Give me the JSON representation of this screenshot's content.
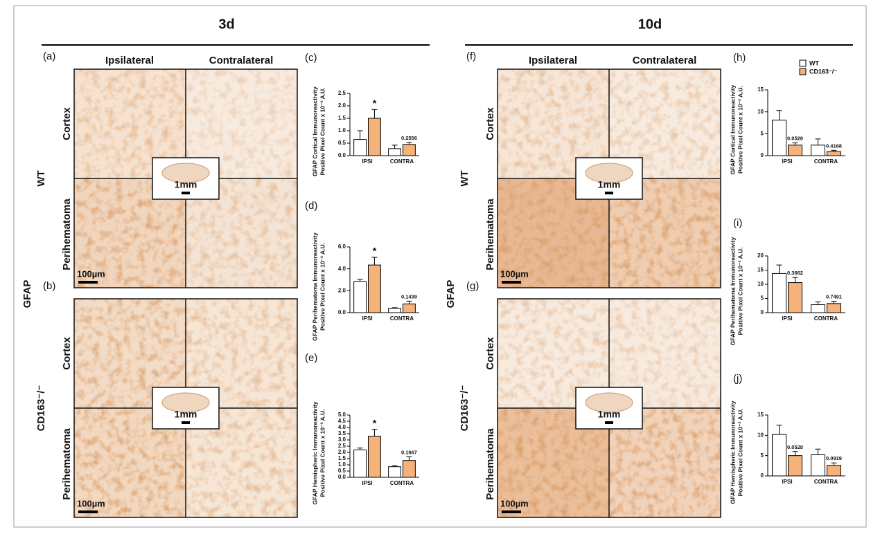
{
  "figure": {
    "legend": [
      {
        "name": "WT",
        "color": "#ffffff"
      },
      {
        "name": "CD163⁻/⁻",
        "color": "#f5b27a"
      }
    ],
    "timepoints": [
      {
        "title": "3d",
        "marker": "GFAP",
        "columns": [
          "Ipsilateral",
          "Contralateral"
        ],
        "panels": [
          {
            "letter": "(a)",
            "group": "WT",
            "rows": [
              "Cortex",
              "Perihematoma"
            ],
            "inset": "1mm",
            "scale": "100µm"
          },
          {
            "letter": "(b)",
            "group": "CD163⁻/⁻",
            "rows": [
              "Cortex",
              "Perihematoma"
            ],
            "inset": "1mm",
            "scale": "100µm"
          }
        ]
      },
      {
        "title": "10d",
        "marker": "GFAP",
        "columns": [
          "Ipsilateral",
          "Contralateral"
        ],
        "panels": [
          {
            "letter": "(f)",
            "group": "WT",
            "rows": [
              "Cortex",
              "Perihematoma"
            ],
            "inset": "1mm",
            "scale": "100µm"
          },
          {
            "letter": "(g)",
            "group": "CD163⁻/⁻",
            "rows": [
              "Cortex",
              "Perihematoma"
            ],
            "inset": "1mm",
            "scale": "100µm"
          }
        ]
      }
    ]
  },
  "chart_data": [
    {
      "type": "bar",
      "panel": "(c)",
      "ylabel": [
        "GFAP Cortical Immunoreactivity",
        "Positive Pixel  Count x 10⁻² A.U."
      ],
      "categories": [
        "IPSI",
        "CONTRA"
      ],
      "ylim": [
        0,
        2.5
      ],
      "yticks": [
        {
          "value": 0,
          "label": "0.0"
        },
        0.5,
        {
          "value": 1,
          "label": "1.0"
        },
        1.5,
        {
          "value": 2,
          "label": "2.0"
        },
        2.5
      ],
      "series": [
        {
          "color": "#ffffff",
          "values": [
            0.65,
            0.28
          ],
          "errors": [
            0.35,
            0.14
          ]
        },
        {
          "color": "#f5b27a",
          "values": [
            1.5,
            0.45
          ],
          "errors": [
            0.35,
            0.08
          ],
          "annotations": [
            "*",
            "0.2556"
          ]
        }
      ]
    },
    {
      "type": "bar",
      "panel": "(d)",
      "ylabel": [
        "GFAP Perihematoma Immunoreactivity",
        "Positive Pixel  Count x 10⁻² A.U."
      ],
      "categories": [
        "IPSI",
        "CONTRA"
      ],
      "ylim": [
        0,
        6
      ],
      "yticks": [
        {
          "value": 0,
          "label": "0.0"
        },
        {
          "value": 2,
          "label": "2.0"
        },
        {
          "value": 4,
          "label": "4.0"
        },
        {
          "value": 6,
          "label": "6.0"
        }
      ],
      "series": [
        {
          "color": "#ffffff",
          "values": [
            2.85,
            0.4
          ],
          "errors": [
            0.2,
            0.05
          ]
        },
        {
          "color": "#f5b27a",
          "values": [
            4.35,
            0.8
          ],
          "errors": [
            0.7,
            0.25
          ],
          "annotations": [
            "*",
            "0.1439"
          ]
        }
      ]
    },
    {
      "type": "bar",
      "panel": "(e)",
      "ylabel": [
        "GFAP Hemispheric Immunoreactivity",
        "Positive Pixel  Count x 10⁻² A.U."
      ],
      "categories": [
        "IPSI",
        "CONTRA"
      ],
      "ylim": [
        0,
        5
      ],
      "yticks": [
        {
          "value": 0,
          "label": "0.0"
        },
        0.5,
        {
          "value": 1,
          "label": "1.0"
        },
        1.5,
        {
          "value": 2,
          "label": "2.0"
        },
        2.5,
        {
          "value": 3,
          "label": "3.0"
        },
        3.5,
        {
          "value": 4,
          "label": "4.0"
        },
        4.5,
        {
          "value": 5,
          "label": "5.0"
        }
      ],
      "series": [
        {
          "color": "#ffffff",
          "values": [
            2.2,
            0.85
          ],
          "errors": [
            0.15,
            0.08
          ]
        },
        {
          "color": "#f5b27a",
          "values": [
            3.3,
            1.35
          ],
          "errors": [
            0.55,
            0.3
          ],
          "annotations": [
            "*",
            "0.1667"
          ]
        }
      ]
    },
    {
      "type": "bar",
      "panel": "(h)",
      "ylabel": [
        "GFAP Cortical Immunoreactivity",
        "Positive Pixel  Count x 10⁻² A.U."
      ],
      "categories": [
        "IPSI",
        "CONTRA"
      ],
      "ylim": [
        0,
        15
      ],
      "yticks": [
        0,
        5,
        10,
        15
      ],
      "series": [
        {
          "color": "#ffffff",
          "values": [
            8.1,
            2.4
          ],
          "errors": [
            2.2,
            1.4
          ]
        },
        {
          "color": "#f5b27a",
          "values": [
            2.4,
            0.9
          ],
          "errors": [
            0.5,
            0.3
          ],
          "annotations": [
            "0.0528",
            "0.4168"
          ]
        }
      ]
    },
    {
      "type": "bar",
      "panel": "(i)",
      "ylabel": [
        "GFAP Perihematoma Immunoreactivity",
        "Positive Pixel  Count x 10⁻² A.U."
      ],
      "categories": [
        "IPSI",
        "CONTRA"
      ],
      "ylim": [
        0,
        20
      ],
      "yticks": [
        0,
        5,
        10,
        15,
        20
      ],
      "series": [
        {
          "color": "#ffffff",
          "values": [
            13.8,
            2.8
          ],
          "errors": [
            3,
            1
          ]
        },
        {
          "color": "#f5b27a",
          "values": [
            10.6,
            3.2
          ],
          "errors": [
            1.8,
            0.8
          ],
          "annotations": [
            "0.3662",
            "0.7491"
          ]
        }
      ]
    },
    {
      "type": "bar",
      "panel": "(j)",
      "ylabel": [
        "GFAP Hemispheric Immunoreactivity",
        "Positive Pixel  Count x 10⁻² A.U."
      ],
      "categories": [
        "IPSI",
        "CONTRA"
      ],
      "ylim": [
        0,
        15
      ],
      "yticks": [
        0,
        5,
        10,
        15
      ],
      "series": [
        {
          "color": "#ffffff",
          "values": [
            10.2,
            5.2
          ],
          "errors": [
            2.3,
            1.4
          ]
        },
        {
          "color": "#f5b27a",
          "values": [
            5,
            2.6
          ],
          "errors": [
            1,
            0.6
          ],
          "annotations": [
            "0.0528",
            "0.0919"
          ]
        }
      ]
    }
  ]
}
